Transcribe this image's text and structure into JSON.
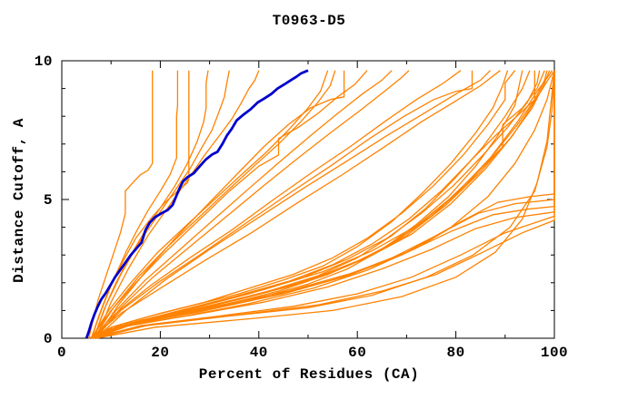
{
  "chart_data": {
    "type": "line",
    "title": "T0963-D5",
    "xlabel": "Percent of Residues (CA)",
    "ylabel": "Distance Cutoff, A",
    "xlim": [
      0,
      100
    ],
    "ylim": [
      0,
      10
    ],
    "grid": false,
    "legend": "none",
    "x_major_ticks": [
      0,
      20,
      40,
      60,
      80,
      100
    ],
    "x_minor_ticks": [
      10,
      30,
      50,
      70,
      90
    ],
    "y_major_ticks": [
      0,
      5,
      10
    ],
    "y_minor_ticks": [
      1,
      2,
      3,
      4,
      6,
      7,
      8,
      9
    ],
    "colors": {
      "model": "#ff8200",
      "highlight": "#0000cd",
      "axis": "#000000",
      "background": "#ffffff"
    },
    "series": [
      {
        "name": "model-blue-highlight",
        "role": "highlight",
        "pts": [
          5,
          0,
          5.5,
          0.25,
          6,
          0.55,
          6.6,
          0.85,
          7.2,
          1.1,
          8,
          1.4,
          9,
          1.65,
          10,
          1.95,
          10.8,
          2.2,
          11.8,
          2.45,
          13,
          2.75,
          14,
          3.0,
          15.2,
          3.25,
          16.2,
          3.45,
          17,
          3.9,
          17.8,
          4.15,
          18.8,
          4.35,
          20.2,
          4.5,
          21.5,
          4.62,
          22.5,
          4.8,
          23.2,
          5.1,
          23.9,
          5.4,
          24.6,
          5.65,
          25.5,
          5.8,
          26.8,
          5.95,
          28,
          6.2,
          29.3,
          6.45,
          30.5,
          6.62,
          31.6,
          6.72,
          32.6,
          7.0,
          33.5,
          7.3,
          34.5,
          7.55,
          35.5,
          7.85,
          36.8,
          8.05,
          38.3,
          8.25,
          39.8,
          8.5,
          41.2,
          8.65,
          42.5,
          8.8,
          43.8,
          9.0,
          45.2,
          9.15,
          46.5,
          9.3,
          47.6,
          9.42,
          48.6,
          9.55,
          50,
          9.65
        ]
      },
      {
        "name": "model-01",
        "role": "model",
        "pts": [
          5.5,
          0,
          6.4,
          0.7,
          7.4,
          1.4,
          8.9,
          2.2,
          10.4,
          3.0,
          11.9,
          3.8,
          12.9,
          4.5,
          12.9,
          5.3,
          14.4,
          5.6,
          16,
          5.9,
          17.5,
          6.05,
          18.4,
          6.3,
          18.4,
          9.65
        ]
      },
      {
        "name": "model-02",
        "role": "model",
        "pts": [
          6,
          0,
          7.5,
          0.8,
          9,
          1.5,
          11,
          2.3,
          13,
          3.1,
          15,
          3.8,
          17.5,
          4.6,
          20,
          5.3,
          22,
          5.9,
          23.3,
          6.5,
          23.3,
          8.0,
          23.5,
          8.4,
          23.5,
          9.65
        ]
      },
      {
        "name": "model-03",
        "role": "model",
        "pts": [
          6,
          0,
          8,
          1.0,
          10,
          1.9,
          12.5,
          2.8,
          15,
          3.6,
          18,
          4.3,
          21,
          4.9,
          23.5,
          5.3,
          25.5,
          5.6,
          25.8,
          5.75,
          25.8,
          9.65
        ]
      },
      {
        "name": "model-04",
        "role": "model",
        "pts": [
          6.5,
          0,
          8.5,
          1.0,
          11,
          2.0,
          14,
          3.0,
          17,
          3.9,
          20,
          4.7,
          23,
          5.5,
          25.5,
          6.3,
          27.5,
          7.1,
          28.8,
          7.8,
          29.3,
          8.3,
          29.3,
          9.2,
          29.7,
          9.65
        ]
      },
      {
        "name": "model-05",
        "role": "model",
        "pts": [
          6.5,
          0,
          9,
          1.2,
          12,
          2.3,
          15.5,
          3.4,
          19,
          4.3,
          22.5,
          5.2,
          26,
          6.1,
          28.5,
          6.9,
          30.5,
          7.5,
          32,
          8.2,
          33,
          8.7,
          33.5,
          9.2,
          34,
          9.65
        ]
      },
      {
        "name": "model-06",
        "role": "model",
        "pts": [
          7,
          0,
          10,
          1.3,
          13.5,
          2.5,
          17.5,
          3.7,
          21.5,
          4.7,
          25.5,
          5.7,
          29,
          6.6,
          32,
          7.3,
          34.5,
          7.9,
          36.5,
          8.5,
          38,
          9.0,
          39.2,
          9.3,
          40,
          9.65
        ]
      },
      {
        "name": "model-07",
        "role": "model",
        "pts": [
          6,
          0,
          9.5,
          1.0,
          14,
          2.0,
          19.5,
          3.1,
          25.5,
          4.1,
          31,
          5.0,
          36.5,
          5.9,
          41.5,
          6.7,
          46,
          7.5,
          50,
          8.3,
          52.5,
          8.9,
          54,
          9.65
        ]
      },
      {
        "name": "model-08",
        "role": "model",
        "pts": [
          6.5,
          0,
          10.5,
          1.1,
          15.5,
          2.2,
          21.5,
          3.3,
          27.5,
          4.3,
          33.5,
          5.3,
          39,
          6.2,
          44,
          7.0,
          48.5,
          7.8,
          52,
          8.5,
          54.5,
          9.1,
          55.5,
          9.65
        ]
      },
      {
        "name": "model-09",
        "role": "model",
        "pts": [
          7,
          0,
          11.5,
          1.2,
          17,
          2.4,
          23,
          3.6,
          29.5,
          4.8,
          35.5,
          5.9,
          41,
          6.9,
          46,
          7.7,
          50.5,
          8.3,
          54.5,
          8.6,
          57.3,
          8.7,
          57.3,
          9.65
        ]
      },
      {
        "name": "model-10",
        "role": "model",
        "pts": [
          6,
          0,
          10,
          1.0,
          15,
          2.0,
          21,
          3.1,
          27.5,
          4.2,
          34,
          5.3,
          40,
          6.2,
          44,
          6.6,
          44,
          7.2,
          48,
          7.6,
          52,
          8.1,
          56,
          8.7,
          59.5,
          9.15,
          62,
          9.65
        ]
      },
      {
        "name": "model-11",
        "role": "model",
        "pts": [
          6.5,
          0,
          11,
          1.0,
          17,
          2.1,
          24,
          3.2,
          31,
          4.3,
          38,
          5.4,
          44.5,
          6.4,
          50.5,
          7.3,
          56,
          8.1,
          61,
          8.8,
          65,
          9.3,
          67,
          9.65
        ]
      },
      {
        "name": "model-12",
        "role": "model",
        "pts": [
          7,
          0,
          12,
          1.1,
          18.5,
          2.2,
          26,
          3.3,
          33.5,
          4.4,
          41,
          5.5,
          48,
          6.5,
          54.5,
          7.4,
          60.5,
          8.2,
          65.5,
          8.9,
          69,
          9.4,
          70.5,
          9.65
        ]
      },
      {
        "name": "model-13",
        "role": "model",
        "pts": [
          6,
          0,
          11,
          0.9,
          18,
          1.9,
          26,
          2.9,
          34.5,
          3.9,
          43,
          5.0,
          51,
          6.0,
          58.5,
          6.9,
          65.5,
          7.8,
          72,
          8.6,
          77.5,
          9.2,
          81,
          9.65
        ]
      },
      {
        "name": "model-14",
        "role": "model",
        "pts": [
          6.5,
          0,
          12,
          1.0,
          19.5,
          2.0,
          28,
          3.0,
          37,
          4.1,
          46,
          5.2,
          54.5,
          6.2,
          62.5,
          7.2,
          69.5,
          8.0,
          75.5,
          8.6,
          80,
          8.9,
          83.3,
          9.0,
          83.3,
          9.65
        ]
      },
      {
        "name": "model-15",
        "role": "model",
        "pts": [
          7,
          0,
          13,
          1.0,
          21,
          2.1,
          30,
          3.2,
          39.5,
          4.3,
          49,
          5.4,
          58,
          6.4,
          66,
          7.3,
          73.5,
          8.1,
          80,
          8.8,
          85,
          9.3,
          87,
          9.65
        ]
      },
      {
        "name": "model-16",
        "role": "model",
        "pts": [
          6,
          0,
          12,
          0.9,
          20,
          1.8,
          29,
          2.8,
          38.5,
          3.8,
          48,
          4.9,
          57,
          5.9,
          65.5,
          6.9,
          73,
          7.8,
          79.5,
          8.5,
          85,
          9.1,
          89,
          9.65
        ]
      },
      {
        "name": "model-17",
        "role": "model",
        "pts": [
          6,
          0,
          10,
          0.4,
          18,
          0.8,
          27,
          1.2,
          36,
          1.6,
          45,
          2.1,
          53,
          2.6,
          60,
          3.3,
          67,
          4.2,
          73,
          5.2,
          79,
          6.3,
          84,
          7.4,
          87.5,
          8.3,
          89.5,
          9.1,
          90.5,
          9.65
        ]
      },
      {
        "name": "model-18",
        "role": "model",
        "pts": [
          6.5,
          0,
          12,
          0.5,
          20,
          0.9,
          29,
          1.3,
          38,
          1.8,
          47,
          2.3,
          55,
          2.9,
          62,
          3.6,
          69,
          4.5,
          75.5,
          5.5,
          81.5,
          6.6,
          86.5,
          7.7,
          90,
          8.6,
          90,
          9.2,
          92,
          9.65
        ]
      },
      {
        "name": "model-19",
        "role": "model",
        "pts": [
          5.5,
          0,
          10,
          0.35,
          20,
          0.7,
          30,
          1.05,
          40,
          1.45,
          50,
          1.95,
          58,
          2.5,
          65,
          3.2,
          72,
          4.1,
          78.5,
          5.1,
          84,
          6.2,
          88.5,
          7.3,
          92,
          8.4,
          93.5,
          9.65
        ]
      },
      {
        "name": "model-20",
        "role": "model",
        "pts": [
          6,
          0,
          12,
          0.45,
          22,
          0.85,
          32,
          1.25,
          42,
          1.7,
          52,
          2.25,
          60,
          2.9,
          67,
          3.7,
          74,
          4.7,
          80,
          5.8,
          85.5,
          6.9,
          90,
          8.0,
          93.5,
          9.0,
          95,
          9.65
        ]
      },
      {
        "name": "model-21",
        "role": "model",
        "pts": [
          6,
          0,
          13,
          0.5,
          24,
          1.0,
          35,
          1.5,
          46,
          2.05,
          55,
          2.65,
          63,
          3.4,
          70.5,
          4.3,
          77,
          5.3,
          83,
          6.4,
          88,
          7.3,
          93,
          8.1,
          96,
          8.6,
          96,
          9.65
        ]
      },
      {
        "name": "model-22",
        "role": "model",
        "pts": [
          6.5,
          0,
          14,
          0.55,
          26,
          1.05,
          38,
          1.6,
          49,
          2.2,
          58,
          2.85,
          66,
          3.6,
          73,
          4.5,
          79.5,
          5.5,
          85.5,
          6.6,
          90.5,
          7.6,
          94.5,
          8.5,
          96.5,
          9.2,
          97,
          9.65
        ]
      },
      {
        "name": "model-23",
        "role": "model",
        "pts": [
          5.5,
          0,
          11,
          0.4,
          22,
          0.8,
          33,
          1.2,
          44,
          1.7,
          54,
          2.3,
          63,
          3.0,
          71,
          3.9,
          78,
          4.9,
          84.5,
          6.0,
          89.5,
          6.9,
          89.5,
          7.7,
          93.5,
          8.3,
          96.5,
          9.0,
          98,
          9.65
        ]
      },
      {
        "name": "model-24",
        "role": "model",
        "pts": [
          6,
          0,
          12,
          0.45,
          24,
          0.9,
          36,
          1.4,
          48,
          1.95,
          58,
          2.6,
          67,
          3.4,
          75,
          4.4,
          82,
          5.5,
          88,
          6.7,
          92.5,
          7.7,
          96,
          8.6,
          98,
          9.3,
          98.5,
          9.65
        ]
      },
      {
        "name": "model-25",
        "role": "model",
        "pts": [
          6.5,
          0,
          13,
          0.5,
          26,
          1.0,
          39,
          1.55,
          51,
          2.15,
          61,
          2.85,
          70,
          3.7,
          78,
          4.8,
          85,
          6.0,
          91,
          7.2,
          95.5,
          8.3,
          98,
          9.2,
          99,
          9.65
        ]
      },
      {
        "name": "model-26",
        "role": "model",
        "pts": [
          7,
          0,
          15,
          0.6,
          28,
          1.15,
          41,
          1.75,
          53,
          2.4,
          63,
          3.15,
          72,
          4.05,
          80,
          5.2,
          87,
          6.5,
          92.5,
          7.8,
          96.5,
          8.9,
          99,
          9.5,
          99.5,
          9.65
        ]
      },
      {
        "name": "model-27",
        "role": "model",
        "pts": [
          6,
          0,
          14,
          0.55,
          27,
          1.05,
          40,
          1.6,
          52,
          2.2,
          62,
          2.9,
          71,
          3.75,
          79,
          4.85,
          86,
          6.1,
          91.5,
          7.3,
          95.5,
          8.4,
          98.5,
          9.25,
          100,
          9.65
        ]
      },
      {
        "name": "model-28",
        "role": "model",
        "pts": [
          6.5,
          0,
          16,
          0.6,
          31,
          1.15,
          46,
          1.7,
          59,
          2.35,
          70,
          3.1,
          79,
          4.0,
          86.5,
          5.1,
          92,
          6.3,
          96,
          7.5,
          98.5,
          8.6,
          100,
          9.65
        ]
      },
      {
        "name": "model-29",
        "role": "model",
        "pts": [
          5.5,
          0,
          12,
          0.4,
          25,
          0.8,
          38,
          1.25,
          51,
          1.8,
          62,
          2.45,
          72,
          3.25,
          81,
          4.2,
          88.5,
          4.9,
          95,
          5.1,
          100,
          5.2,
          100,
          9.65
        ]
      },
      {
        "name": "model-30",
        "role": "model",
        "pts": [
          6,
          0,
          14,
          0.5,
          28,
          0.95,
          42,
          1.5,
          55,
          2.1,
          66,
          2.8,
          76,
          3.7,
          84.5,
          4.5,
          92,
          4.85,
          100,
          5.0,
          100,
          9.65
        ]
      },
      {
        "name": "model-31",
        "role": "model",
        "pts": [
          6.5,
          0,
          15,
          0.55,
          30,
          1.05,
          45,
          1.6,
          58,
          2.25,
          69,
          3.0,
          79,
          3.85,
          87.5,
          4.45,
          94.5,
          4.65,
          100,
          4.75,
          100,
          9.65
        ]
      },
      {
        "name": "model-32",
        "role": "model",
        "pts": [
          5.5,
          0,
          13,
          0.45,
          27,
          0.85,
          41,
          1.3,
          54,
          1.85,
          65,
          2.5,
          75,
          3.2,
          84,
          3.95,
          92,
          4.35,
          100,
          4.55,
          100,
          9.65
        ]
      },
      {
        "name": "model-33",
        "role": "model",
        "pts": [
          6,
          0,
          16,
          0.45,
          32,
          0.8,
          47,
          1.15,
          60,
          1.6,
          71,
          2.2,
          81,
          3.0,
          90,
          3.8,
          100,
          4.4,
          100,
          9.65
        ]
      },
      {
        "name": "model-34",
        "role": "model",
        "pts": [
          7,
          0,
          18,
          0.5,
          36,
          0.85,
          52,
          1.2,
          65,
          1.7,
          76,
          2.3,
          85.5,
          3.1,
          93.5,
          3.8,
          100,
          4.25,
          100,
          9.65
        ]
      },
      {
        "name": "model-35",
        "role": "model",
        "pts": [
          6.5,
          0,
          17,
          0.45,
          34,
          0.8,
          50,
          1.1,
          63,
          1.55,
          74,
          2.2,
          83.5,
          3.0,
          91,
          4.0,
          96,
          5.3,
          98.5,
          6.9,
          99.5,
          8.2,
          100,
          9.65
        ]
      },
      {
        "name": "model-36",
        "role": "model",
        "pts": [
          7,
          0,
          19,
          0.4,
          38,
          0.7,
          55,
          1.0,
          69,
          1.5,
          80,
          2.2,
          88,
          3.1,
          93.5,
          4.3,
          96.5,
          5.6,
          98.5,
          7.1,
          100,
          9.65
        ]
      }
    ]
  }
}
